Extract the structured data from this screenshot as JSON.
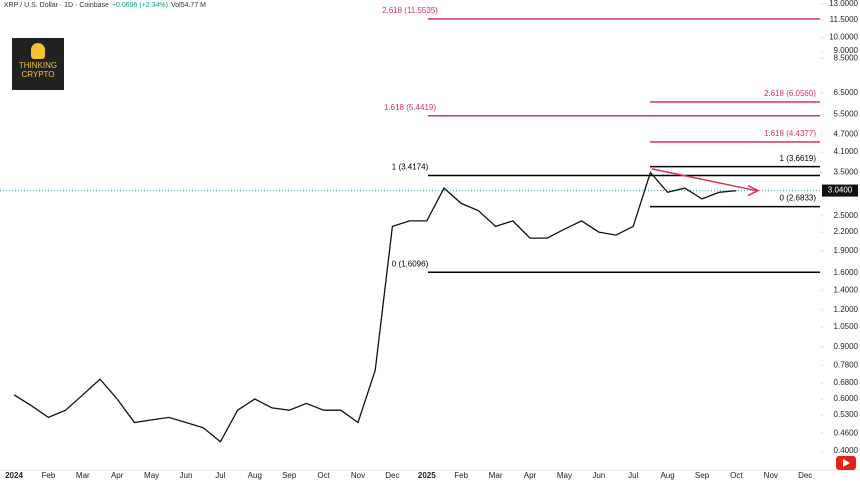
{
  "header": {
    "symbol": "XRP / U.S. Dollar · 1D · Coinbase",
    "change": "+0.0696 (+2.34%)",
    "volume": "Vol54.77 M"
  },
  "logo": {
    "line1": "THINKING",
    "line2": "CRYPTO"
  },
  "chart_data": {
    "type": "line",
    "log_scale": true,
    "grid": false,
    "categories": [
      "2024",
      null,
      "Feb",
      null,
      "Mar",
      null,
      "Apr",
      null,
      "May",
      null,
      "Jun",
      null,
      "Jul",
      null,
      "Aug",
      null,
      "Sep",
      null,
      "Oct",
      null,
      "Nov",
      null,
      "Dec",
      null,
      "2025",
      null,
      "Feb",
      null,
      "Mar",
      null,
      "Apr",
      null,
      "May",
      null,
      "Jun",
      null,
      "Jul",
      null,
      "Aug",
      null,
      "Sep",
      null,
      "Oct",
      null,
      "Nov",
      null,
      "Dec",
      null
    ],
    "series": [
      {
        "name": "XRP",
        "color": "#111111",
        "values": [
          0.62,
          0.57,
          0.52,
          0.55,
          0.62,
          0.7,
          0.6,
          0.5,
          0.51,
          0.52,
          0.5,
          0.48,
          0.43,
          0.55,
          0.6,
          0.56,
          0.55,
          0.58,
          0.55,
          0.55,
          0.5,
          0.75,
          2.3,
          2.4,
          2.4,
          3.1,
          2.75,
          2.6,
          2.3,
          2.4,
          2.1,
          2.1,
          2.25,
          2.4,
          2.2,
          2.15,
          2.3,
          3.5,
          3.0,
          3.1,
          2.85,
          3.0,
          3.04,
          null,
          null,
          null,
          null,
          null
        ]
      }
    ],
    "ylim": [
      0.34,
      13.4
    ],
    "yticks": [
      {
        "value": 13,
        "label": "13.0000"
      },
      {
        "value": 11.5,
        "label": "11.5000"
      },
      {
        "value": 10,
        "label": "10.0000"
      },
      {
        "value": 9,
        "label": "9.0000"
      },
      {
        "value": 8.5,
        "label": "8.5000"
      },
      {
        "value": 6.5,
        "label": "6.5000"
      },
      {
        "value": 5.5,
        "label": "5.5000"
      },
      {
        "value": 4.7,
        "label": "4.7000"
      },
      {
        "value": 4.1,
        "label": "4.1000"
      },
      {
        "value": 3.5,
        "label": "3.5000"
      },
      {
        "value": 2.5,
        "label": "2.5000"
      },
      {
        "value": 2.2,
        "label": "2.2000"
      },
      {
        "value": 1.9,
        "label": "1.9000"
      },
      {
        "value": 1.6,
        "label": "1.6000"
      },
      {
        "value": 1.4,
        "label": "1.4000"
      },
      {
        "value": 1.2,
        "label": "1.2000"
      },
      {
        "value": 1.05,
        "label": "1.0500"
      },
      {
        "value": 0.9,
        "label": "0.9000"
      },
      {
        "value": 0.78,
        "label": "0.7800"
      },
      {
        "value": 0.68,
        "label": "0.6800"
      },
      {
        "value": 0.6,
        "label": "0.6000"
      },
      {
        "value": 0.53,
        "label": "0.5300"
      },
      {
        "value": 0.46,
        "label": "0.4600"
      },
      {
        "value": 0.4,
        "label": "0.4000"
      }
    ],
    "current_price": {
      "value": 3.04,
      "label": "3.0400"
    },
    "fib_left": [
      {
        "label": "2.618 (11.5535)",
        "value": 11.5535,
        "color": "#d6335a"
      },
      {
        "label": "1.618 (5.4419)",
        "value": 5.4419,
        "color": "#d6335a"
      },
      {
        "label": "1 (3.4174)",
        "value": 3.4174,
        "color": "#000000"
      },
      {
        "label": "0 (1.6096)",
        "value": 1.6096,
        "color": "#000000"
      }
    ],
    "fib_right": [
      {
        "label": "2.618 (6.0560)",
        "value": 6.056,
        "color": "#d6335a"
      },
      {
        "label": "1.618 (4.4377)",
        "value": 4.4377,
        "color": "#d6335a"
      },
      {
        "label": "1 (3.6619)",
        "value": 3.6619,
        "color": "#000000"
      },
      {
        "label": "0 (2.6833)",
        "value": 2.6833,
        "color": "#000000"
      }
    ]
  }
}
